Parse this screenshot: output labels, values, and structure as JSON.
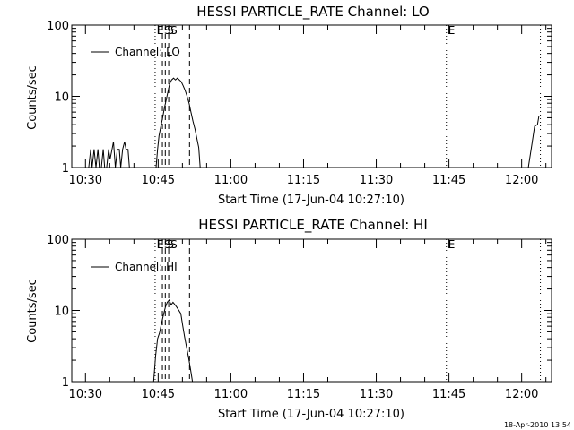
{
  "timestamp": "18-Apr-2010 13:54",
  "chart_data": [
    {
      "type": "line",
      "title": "HESSI PARTICLE_RATE Channel: LO",
      "ylabel": "Counts/sec",
      "xlabel": "Start Time (17-Jun-04 10:27:10)",
      "x_unit": "minutes after 10:27:10",
      "xlim": [
        0,
        99
      ],
      "ylim": [
        1,
        100
      ],
      "yscale": "log",
      "y_ticks": [
        "1",
        "10",
        "100"
      ],
      "x_ticks": [
        {
          "label": "10:30",
          "t": 2.83
        },
        {
          "label": "10:45",
          "t": 17.83
        },
        {
          "label": "11:00",
          "t": 32.83
        },
        {
          "label": "11:15",
          "t": 47.83
        },
        {
          "label": "11:30",
          "t": 62.83
        },
        {
          "label": "11:45",
          "t": 77.83
        },
        {
          "label": "12:00",
          "t": 92.83
        }
      ],
      "legend": {
        "position": "top-left",
        "entries": [
          "Channel: LO"
        ]
      },
      "markers": [
        {
          "t": 17.2,
          "style": "dotted",
          "label": "E"
        },
        {
          "t": 18.7,
          "style": "dashed",
          "label": "S"
        },
        {
          "t": 19.3,
          "style": "dashed",
          "label": "S"
        },
        {
          "t": 20.0,
          "style": "dashed",
          "label": "S"
        },
        {
          "t": 24.3,
          "style": "dashed",
          "label": ""
        },
        {
          "t": 77.3,
          "style": "dotted",
          "label": "E"
        },
        {
          "t": 96.7,
          "style": "dotted",
          "label": ""
        }
      ],
      "series": [
        {
          "segments": [
            [
              [
                3.5,
                1
              ],
              [
                3.9,
                1.8
              ],
              [
                4.2,
                1
              ],
              [
                4.6,
                1.8
              ],
              [
                5.0,
                1
              ],
              [
                5.4,
                1.8
              ],
              [
                5.7,
                1
              ],
              [
                6.1,
                1
              ],
              [
                6.5,
                1.8
              ],
              [
                6.8,
                1
              ],
              [
                7.2,
                1
              ],
              [
                7.6,
                1.8
              ],
              [
                7.9,
                1.3
              ],
              [
                8.3,
                1.8
              ],
              [
                8.6,
                2.3
              ],
              [
                9.0,
                1
              ],
              [
                9.4,
                1.8
              ],
              [
                9.8,
                1.8
              ],
              [
                10.1,
                1
              ],
              [
                10.5,
                1.8
              ],
              [
                10.9,
                2.3
              ],
              [
                11.2,
                1.8
              ],
              [
                11.6,
                1.8
              ],
              [
                11.9,
                1
              ]
            ],
            [
              [
                17.4,
                1
              ],
              [
                17.7,
                1.8
              ],
              [
                18.0,
                2.8
              ],
              [
                18.4,
                3.8
              ],
              [
                18.8,
                5.2
              ],
              [
                19.1,
                6.8
              ],
              [
                19.5,
                9.0
              ],
              [
                19.9,
                12
              ],
              [
                20.2,
                15
              ],
              [
                20.6,
                17
              ],
              [
                21.0,
                18
              ],
              [
                21.4,
                17
              ],
              [
                21.8,
                18
              ],
              [
                22.2,
                17
              ],
              [
                22.6,
                16
              ],
              [
                23.0,
                14
              ],
              [
                23.4,
                12
              ],
              [
                23.8,
                10
              ],
              [
                24.2,
                8
              ],
              [
                24.6,
                6
              ],
              [
                25.0,
                4.5
              ],
              [
                25.4,
                3.5
              ],
              [
                25.8,
                2.6
              ],
              [
                26.2,
                1.9
              ],
              [
                26.5,
                1
              ]
            ],
            [
              [
                94.2,
                1
              ],
              [
                94.9,
                2.0
              ],
              [
                95.5,
                3.8
              ],
              [
                96.1,
                4.0
              ],
              [
                96.4,
                5.3
              ]
            ]
          ]
        }
      ]
    },
    {
      "type": "line",
      "title": "HESSI PARTICLE_RATE Channel: HI",
      "ylabel": "Counts/sec",
      "xlabel": "Start Time (17-Jun-04 10:27:10)",
      "x_unit": "minutes after 10:27:10",
      "xlim": [
        0,
        99
      ],
      "ylim": [
        1,
        100
      ],
      "yscale": "log",
      "y_ticks": [
        "1",
        "10",
        "100"
      ],
      "x_ticks": [
        {
          "label": "10:30",
          "t": 2.83
        },
        {
          "label": "10:45",
          "t": 17.83
        },
        {
          "label": "11:00",
          "t": 32.83
        },
        {
          "label": "11:15",
          "t": 47.83
        },
        {
          "label": "11:30",
          "t": 62.83
        },
        {
          "label": "11:45",
          "t": 77.83
        },
        {
          "label": "12:00",
          "t": 92.83
        }
      ],
      "legend": {
        "position": "top-left",
        "entries": [
          "Channel: HI"
        ]
      },
      "markers": [
        {
          "t": 17.2,
          "style": "dotted",
          "label": "E"
        },
        {
          "t": 18.7,
          "style": "dashed",
          "label": "S"
        },
        {
          "t": 19.3,
          "style": "dashed",
          "label": "S"
        },
        {
          "t": 20.0,
          "style": "dashed",
          "label": "S"
        },
        {
          "t": 24.3,
          "style": "dashed",
          "label": ""
        },
        {
          "t": 77.3,
          "style": "dotted",
          "label": "E"
        },
        {
          "t": 96.7,
          "style": "dotted",
          "label": ""
        }
      ],
      "series": [
        {
          "segments": [
            [
              [
                16.9,
                1
              ],
              [
                17.3,
                2.3
              ],
              [
                17.7,
                4.0
              ],
              [
                18.1,
                4.8
              ],
              [
                18.5,
                6.5
              ],
              [
                18.9,
                8.5
              ],
              [
                19.3,
                11
              ],
              [
                19.7,
                13
              ],
              [
                20.1,
                14
              ],
              [
                20.5,
                12
              ],
              [
                20.9,
                13
              ],
              [
                21.3,
                12
              ],
              [
                21.7,
                11
              ],
              [
                22.1,
                10
              ],
              [
                22.5,
                9
              ],
              [
                22.9,
                6
              ],
              [
                23.3,
                4.2
              ],
              [
                23.7,
                3.0
              ],
              [
                24.1,
                2.2
              ],
              [
                24.5,
                1.5
              ],
              [
                24.9,
                1
              ]
            ]
          ]
        }
      ]
    }
  ]
}
